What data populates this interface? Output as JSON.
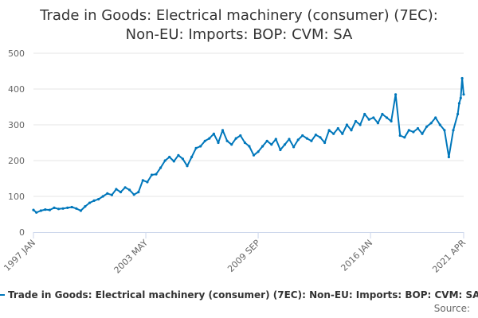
{
  "chart_data": {
    "type": "line",
    "title_lines": [
      "Trade in Goods: Electrical machinery (consumer) (7EC):",
      "Non-EU: Imports: BOP: CVM: SA"
    ],
    "xlabel": "",
    "ylabel": "",
    "ylim": [
      0,
      500
    ],
    "y_ticks": [
      0,
      100,
      200,
      300,
      400,
      500
    ],
    "x_range": [
      "1997-01",
      "2021-04"
    ],
    "x_ticks": [
      {
        "label": "1997 JAN",
        "date": "1997-01"
      },
      {
        "label": "2003 MAY",
        "date": "2003-05"
      },
      {
        "label": "2009 SEP",
        "date": "2009-09"
      },
      {
        "label": "2016 JAN",
        "date": "2016-01"
      },
      {
        "label": "2021 APR",
        "date": "2021-04"
      }
    ],
    "grid": true,
    "legend_position": "bottom",
    "series": [
      {
        "name": "Trade in Goods: Electrical machinery (consumer) (7EC): Non-EU: Imports: BOP: CVM: SA",
        "color": "#0077bb",
        "points": [
          [
            "1997-01",
            62
          ],
          [
            "1997-03",
            55
          ],
          [
            "1997-06",
            60
          ],
          [
            "1997-09",
            63
          ],
          [
            "1997-12",
            62
          ],
          [
            "1998-03",
            68
          ],
          [
            "1998-06",
            65
          ],
          [
            "1998-09",
            66
          ],
          [
            "1998-12",
            68
          ],
          [
            "1999-03",
            70
          ],
          [
            "1999-06",
            66
          ],
          [
            "1999-09",
            60
          ],
          [
            "1999-12",
            72
          ],
          [
            "2000-03",
            82
          ],
          [
            "2000-06",
            88
          ],
          [
            "2000-09",
            92
          ],
          [
            "2000-12",
            100
          ],
          [
            "2001-03",
            108
          ],
          [
            "2001-06",
            104
          ],
          [
            "2001-09",
            120
          ],
          [
            "2001-12",
            112
          ],
          [
            "2002-03",
            125
          ],
          [
            "2002-06",
            118
          ],
          [
            "2002-09",
            105
          ],
          [
            "2002-12",
            112
          ],
          [
            "2003-03",
            145
          ],
          [
            "2003-06",
            140
          ],
          [
            "2003-09",
            160
          ],
          [
            "2003-12",
            162
          ],
          [
            "2004-03",
            180
          ],
          [
            "2004-06",
            200
          ],
          [
            "2004-09",
            210
          ],
          [
            "2004-12",
            198
          ],
          [
            "2005-03",
            215
          ],
          [
            "2005-06",
            205
          ],
          [
            "2005-09",
            185
          ],
          [
            "2005-12",
            210
          ],
          [
            "2006-03",
            235
          ],
          [
            "2006-06",
            240
          ],
          [
            "2006-09",
            255
          ],
          [
            "2006-12",
            262
          ],
          [
            "2007-03",
            275
          ],
          [
            "2007-06",
            250
          ],
          [
            "2007-09",
            285
          ],
          [
            "2007-12",
            255
          ],
          [
            "2008-03",
            245
          ],
          [
            "2008-06",
            262
          ],
          [
            "2008-09",
            270
          ],
          [
            "2008-12",
            250
          ],
          [
            "2009-03",
            240
          ],
          [
            "2009-06",
            215
          ],
          [
            "2009-09",
            225
          ],
          [
            "2009-12",
            240
          ],
          [
            "2010-03",
            255
          ],
          [
            "2010-06",
            245
          ],
          [
            "2010-09",
            260
          ],
          [
            "2010-12",
            230
          ],
          [
            "2011-03",
            245
          ],
          [
            "2011-06",
            260
          ],
          [
            "2011-09",
            238
          ],
          [
            "2011-12",
            258
          ],
          [
            "2012-03",
            270
          ],
          [
            "2012-06",
            262
          ],
          [
            "2012-09",
            255
          ],
          [
            "2012-12",
            272
          ],
          [
            "2013-03",
            265
          ],
          [
            "2013-06",
            250
          ],
          [
            "2013-09",
            285
          ],
          [
            "2013-12",
            275
          ],
          [
            "2014-03",
            290
          ],
          [
            "2014-06",
            275
          ],
          [
            "2014-09",
            300
          ],
          [
            "2014-12",
            285
          ],
          [
            "2015-03",
            310
          ],
          [
            "2015-06",
            300
          ],
          [
            "2015-09",
            330
          ],
          [
            "2015-12",
            315
          ],
          [
            "2016-03",
            320
          ],
          [
            "2016-06",
            305
          ],
          [
            "2016-09",
            330
          ],
          [
            "2016-12",
            320
          ],
          [
            "2017-03",
            310
          ],
          [
            "2017-06",
            385
          ],
          [
            "2017-09",
            270
          ],
          [
            "2017-12",
            265
          ],
          [
            "2018-03",
            285
          ],
          [
            "2018-06",
            280
          ],
          [
            "2018-09",
            290
          ],
          [
            "2018-12",
            275
          ],
          [
            "2019-03",
            295
          ],
          [
            "2019-06",
            305
          ],
          [
            "2019-09",
            320
          ],
          [
            "2019-12",
            300
          ],
          [
            "2020-03",
            285
          ],
          [
            "2020-06",
            210
          ],
          [
            "2020-09",
            285
          ],
          [
            "2020-12",
            330
          ],
          [
            "2021-01",
            360
          ],
          [
            "2021-02",
            375
          ],
          [
            "2021-03",
            430
          ],
          [
            "2021-04",
            385
          ]
        ]
      }
    ],
    "source_label": "Source: "
  }
}
